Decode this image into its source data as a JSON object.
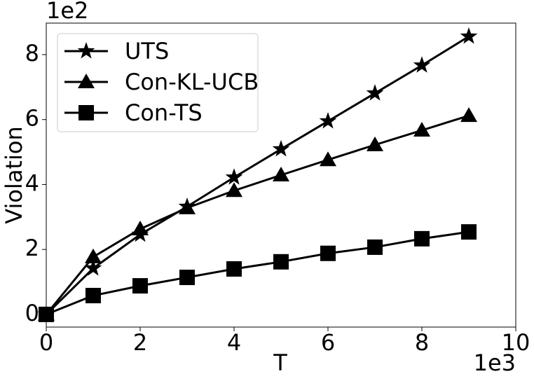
{
  "chart_data": {
    "type": "line",
    "x_label": "T",
    "y_label": "Violation",
    "x_offset_label": "1e3",
    "y_offset_label": "1e2",
    "x": [
      0,
      1,
      2,
      3,
      4,
      5,
      6,
      7,
      8,
      9
    ],
    "series": [
      {
        "name": "UTS",
        "color": "#000000",
        "marker": "star",
        "values": [
          0,
          1.42,
          2.46,
          3.32,
          4.22,
          5.09,
          5.95,
          6.81,
          7.67,
          8.56
        ]
      },
      {
        "name": "Con-KL-UCB",
        "color": "#000000",
        "marker": "triangle",
        "values": [
          0,
          1.77,
          2.63,
          3.28,
          3.81,
          4.29,
          4.76,
          5.22,
          5.67,
          6.12
        ]
      },
      {
        "name": "Con-TS",
        "color": "#000000",
        "marker": "square",
        "values": [
          0,
          0.58,
          0.88,
          1.14,
          1.4,
          1.62,
          1.88,
          2.07,
          2.33,
          2.54
        ]
      }
    ],
    "xlim": [
      0,
      10
    ],
    "ylim": [
      -0.39,
      8.97
    ],
    "xticks": [
      0,
      2,
      4,
      6,
      8,
      10
    ],
    "yticks": [
      0,
      2,
      4,
      6,
      8
    ],
    "grid": false,
    "legend": "upper left"
  }
}
